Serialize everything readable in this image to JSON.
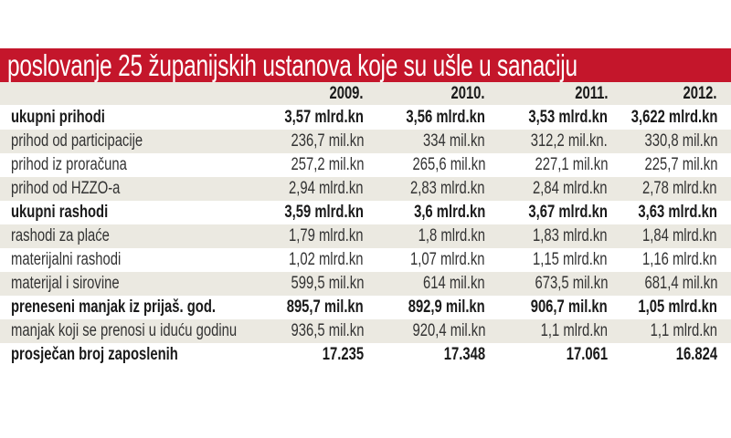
{
  "title": "poslovanje 25 županijskih ustanova koje su ušle u sanaciju",
  "colors": {
    "title_band": "#c4162b",
    "row_shade": "#ebe9e1"
  },
  "chart_data": {
    "type": "table",
    "title": "poslovanje 25 županijskih ustanova koje su ušle u sanaciju",
    "columns": [
      "2009.",
      "2010.",
      "2011.",
      "2012."
    ],
    "rows": [
      {
        "label": "ukupni prihodi",
        "bold": true,
        "values": [
          "3,57 mlrd.kn",
          "3,56 mlrd.kn",
          "3,53 mlrd.kn",
          "3,622 mlrd.kn"
        ]
      },
      {
        "label": "prihod od participacije",
        "bold": false,
        "values": [
          "236,7 mil.kn",
          "334 mil.kn",
          "312,2 mil.kn.",
          "330,8 mil.kn"
        ]
      },
      {
        "label": "prihod iz proračuna",
        "bold": false,
        "values": [
          "257,2 mil.kn",
          "265,6 mil.kn",
          "227,1 mil.kn",
          "225,7 mil.kn"
        ]
      },
      {
        "label": "prihod od HZZO-a",
        "bold": false,
        "values": [
          "2,94 mlrd.kn",
          "2,83 mlrd.kn",
          "2,84 mlrd.kn",
          "2,78 mlrd.kn"
        ]
      },
      {
        "label": "ukupni rashodi",
        "bold": true,
        "values": [
          "3,59 mlrd.kn",
          "3,6 mlrd.kn",
          "3,67 mlrd.kn",
          "3,63 mlrd.kn"
        ]
      },
      {
        "label": "rashodi za plaće",
        "bold": false,
        "values": [
          "1,79 mlrd.kn",
          "1,8 mlrd.kn",
          "1,83 mlrd.kn",
          "1,84 mlrd.kn"
        ]
      },
      {
        "label": "materijalni rashodi",
        "bold": false,
        "values": [
          "1,02 mlrd.kn",
          "1,07 mlrd.kn",
          "1,15 mlrd.kn",
          "1,16 mlrd.kn"
        ]
      },
      {
        "label": "materijal i sirovine",
        "bold": false,
        "values": [
          "599,5 mil.kn",
          "614 mil.kn",
          "673,5 mil.kn",
          "681,4 mil.kn"
        ]
      },
      {
        "label": "preneseni manjak iz prijaš. god.",
        "bold": true,
        "values": [
          "895,7 mil.kn",
          "892,9 mil.kn",
          "906,7 mil.kn",
          "1,05 mlrd.kn"
        ]
      },
      {
        "label": "manjak koji se prenosi u iduću godinu",
        "bold": false,
        "values": [
          "936,5 mil.kn",
          "920,4 mil.kn",
          "1,1 mlrd.kn",
          "1,1 mlrd.kn"
        ]
      },
      {
        "label": "prosječan broj zaposlenih",
        "bold": true,
        "values": [
          "17.235",
          "17.348",
          "17.061",
          "16.824"
        ]
      }
    ]
  }
}
